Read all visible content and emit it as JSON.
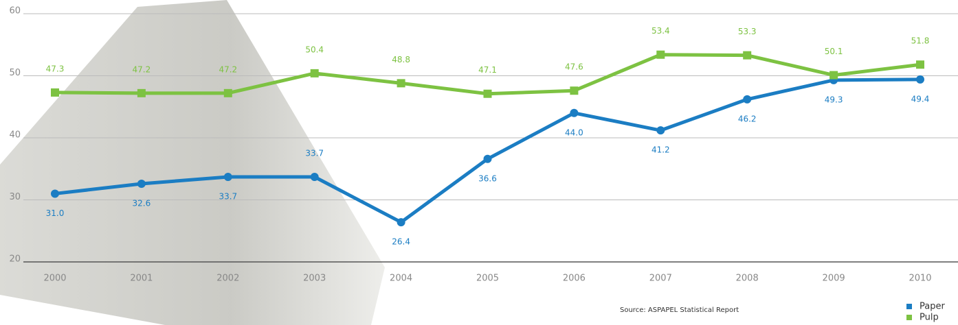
{
  "chart_data": {
    "type": "line",
    "categories": [
      "2000",
      "2001",
      "2002",
      "2003",
      "2004",
      "2005",
      "2006",
      "2007",
      "2008",
      "2009",
      "2010"
    ],
    "series": [
      {
        "name": "Paper",
        "color": "#1b7dc3",
        "values": [
          31.0,
          32.6,
          33.7,
          33.7,
          26.4,
          36.6,
          44.0,
          41.2,
          46.2,
          49.3,
          49.4
        ],
        "value_labels": [
          "31.0",
          "32.6",
          "33.7",
          "33.7",
          "26.4",
          "36.6",
          "44.0",
          "41.2",
          "46.2",
          "49.3",
          "49.4"
        ]
      },
      {
        "name": "Pulp",
        "color": "#7dc242",
        "values": [
          47.3,
          47.2,
          47.2,
          50.4,
          48.8,
          47.1,
          47.6,
          53.4,
          53.3,
          50.1,
          51.8
        ],
        "value_labels": [
          "47.3",
          "47.2",
          "47.2",
          "50.4",
          "48.8",
          "47.1",
          "47.6",
          "53.4",
          "53.3",
          "50.1",
          "51.8"
        ]
      }
    ],
    "ylim": [
      20,
      60
    ],
    "yticks": [
      20,
      30,
      40,
      50,
      60
    ],
    "grid": true,
    "source": "Source: ASPAPEL Statistical Report"
  }
}
